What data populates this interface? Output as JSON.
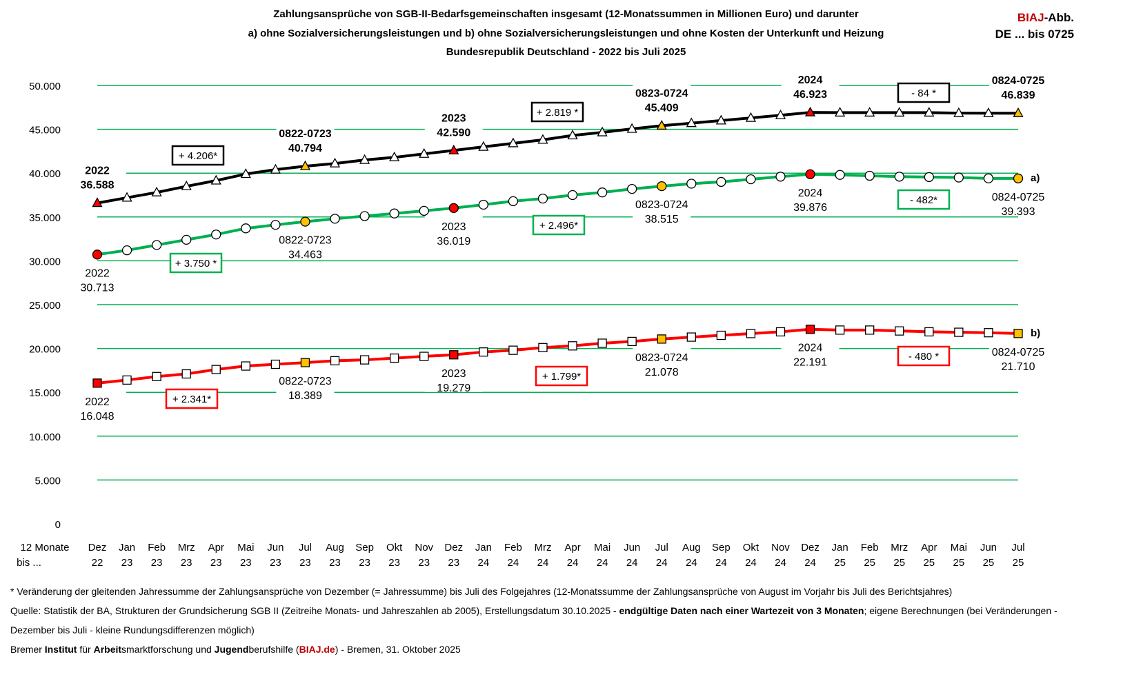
{
  "title": {
    "line1": "Zahlungsansprüche von SGB-II-Bedarfsgemeinschaften insgesamt (12-Monatssummen in Millionen Euro) und darunter",
    "line2": "a) ohne Sozialversicherungsleistungen und b) ohne Sozialversicherungsleistungen und ohne Kosten der Unterkunft und Heizung",
    "line3": "Bundesrepublik Deutschland - 2022 bis Juli 2025"
  },
  "corner": {
    "biaj": "BIAJ",
    "abb": "-Abb.",
    "code": "DE ... bis 0725"
  },
  "footer": {
    "note": "* Veränderung der gleitenden Jahressumme der Zahlungsansprüche von Dezember (= Jahressumme)  bis Juli des Folgejahres (12-Monatssumme der Zahlungsansprüche von August im Vorjahr bis Juli des Berichtsjahres)",
    "source_a": "Quelle: Statistik der BA, Strukturen der Grundsicherung SGB II (Zeitreihe Monats- und Jahreszahlen ab 2005), Erstellungsdatum 30.10.2025 - ",
    "source_bold": "endgültige Daten nach einer Wartezeit von 3 Monaten",
    "source_b": "; eigene Berechnungen (bei Veränderungen -",
    "source_line2": "Dezember bis Juli - kleine Rundungsdifferenzen möglich)",
    "inst": [
      {
        "t": "Bremer ",
        "b": false
      },
      {
        "t": "Institut",
        "b": true
      },
      {
        "t": " für ",
        "b": false
      },
      {
        "t": "Arbeit",
        "b": true
      },
      {
        "t": "smarktforschung und ",
        "b": false
      },
      {
        "t": "Jugend",
        "b": true
      },
      {
        "t": "berufshilfe (",
        "b": false
      },
      {
        "t": "BIAJ.de",
        "b": true,
        "red": true
      },
      {
        "t": ") - Bremen, 31. Oktober 2025",
        "b": false
      }
    ]
  },
  "chart_data": {
    "type": "line",
    "ylim": [
      0,
      50000
    ],
    "yticks": [
      "0",
      "5.000",
      "10.000",
      "15.000",
      "20.000",
      "25.000",
      "30.000",
      "35.000",
      "40.000",
      "45.000",
      "50.000"
    ],
    "grid": true,
    "xlabel_prefix": [
      "12 Monate",
      "bis ..."
    ],
    "categories_month": [
      "Dez",
      "Jan",
      "Feb",
      "Mrz",
      "Apr",
      "Mai",
      "Jun",
      "Jul",
      "Aug",
      "Sep",
      "Okt",
      "Nov",
      "Dez",
      "Jan",
      "Feb",
      "Mrz",
      "Apr",
      "Mai",
      "Jun",
      "Jul",
      "Aug",
      "Sep",
      "Okt",
      "Nov",
      "Dez",
      "Jan",
      "Feb",
      "Mrz",
      "Apr",
      "Mai",
      "Jun",
      "Jul"
    ],
    "categories_year": [
      "22",
      "23",
      "23",
      "23",
      "23",
      "23",
      "23",
      "23",
      "23",
      "23",
      "23",
      "23",
      "23",
      "24",
      "24",
      "24",
      "24",
      "24",
      "24",
      "24",
      "24",
      "24",
      "24",
      "24",
      "24",
      "25",
      "25",
      "25",
      "25",
      "25",
      "25",
      "25"
    ],
    "colors": {
      "grid": "#00b050",
      "highlight_dec": "#ff0000",
      "highlight_jul": "#ffc000",
      "marker": "#ffffff"
    },
    "series": [
      {
        "key": "total",
        "color": "#000000",
        "marker": "triangle",
        "label_bold": true,
        "side": "above",
        "values": [
          36588,
          37200,
          37800,
          38500,
          39150,
          39900,
          40400,
          40794,
          41100,
          41500,
          41800,
          42200,
          42590,
          43000,
          43400,
          43800,
          44300,
          44650,
          45050,
          45409,
          45700,
          46000,
          46300,
          46600,
          46923,
          46900,
          46900,
          46900,
          46900,
          46850,
          46840,
          46839
        ],
        "labels": [
          {
            "i": 0,
            "a": "2022",
            "b": "36.588"
          },
          {
            "i": 7,
            "a": "0822-0723",
            "b": "40.794"
          },
          {
            "i": 12,
            "a": "2023",
            "b": "42.590"
          },
          {
            "i": 19,
            "a": "0823-0724",
            "b": "45.409"
          },
          {
            "i": 24,
            "a": "2024",
            "b": "46.923"
          },
          {
            "i": 31,
            "a": "0824-0725",
            "b": "46.839"
          }
        ],
        "changes": [
          "+ 4.206*",
          "+ 2.819 *",
          "- 84 *"
        ]
      },
      {
        "key": "a",
        "name": "a)",
        "color": "#00b050",
        "marker": "circle",
        "label_bold": false,
        "side": "below",
        "values": [
          30713,
          31200,
          31800,
          32400,
          33000,
          33700,
          34100,
          34463,
          34800,
          35100,
          35400,
          35700,
          36019,
          36400,
          36800,
          37100,
          37500,
          37800,
          38200,
          38515,
          38800,
          39000,
          39300,
          39600,
          39876,
          39800,
          39700,
          39600,
          39550,
          39500,
          39400,
          39393
        ],
        "labels": [
          {
            "i": 0,
            "a": "2022",
            "b": "30.713"
          },
          {
            "i": 7,
            "a": "0822-0723",
            "b": "34.463"
          },
          {
            "i": 12,
            "a": "2023",
            "b": "36.019"
          },
          {
            "i": 19,
            "a": "0823-0724",
            "b": "38.515"
          },
          {
            "i": 24,
            "a": "2024",
            "b": "39.876"
          },
          {
            "i": 31,
            "a": "0824-0725",
            "b": "39.393"
          }
        ],
        "changes": [
          "+ 3.750 *",
          "+ 2.496*",
          "- 482*"
        ]
      },
      {
        "key": "b",
        "name": "b)",
        "color": "#ff0000",
        "marker": "square",
        "label_bold": false,
        "side": "below",
        "values": [
          16048,
          16400,
          16800,
          17100,
          17600,
          18000,
          18200,
          18389,
          18600,
          18700,
          18900,
          19100,
          19279,
          19600,
          19800,
          20100,
          20300,
          20600,
          20800,
          21078,
          21300,
          21500,
          21700,
          21900,
          22191,
          22100,
          22100,
          22000,
          21900,
          21850,
          21800,
          21710
        ],
        "labels": [
          {
            "i": 0,
            "a": "2022",
            "b": "16.048"
          },
          {
            "i": 7,
            "a": "0822-0723",
            "b": "18.389"
          },
          {
            "i": 12,
            "a": "2023",
            "b": "19.279"
          },
          {
            "i": 19,
            "a": "0823-0724",
            "b": "21.078"
          },
          {
            "i": 24,
            "a": "2024",
            "b": "22.191"
          },
          {
            "i": 31,
            "a": "0824-0725",
            "b": "21.710"
          }
        ],
        "changes": [
          "+ 2.341*",
          "+ 1.799*",
          "- 480 *"
        ]
      }
    ]
  }
}
